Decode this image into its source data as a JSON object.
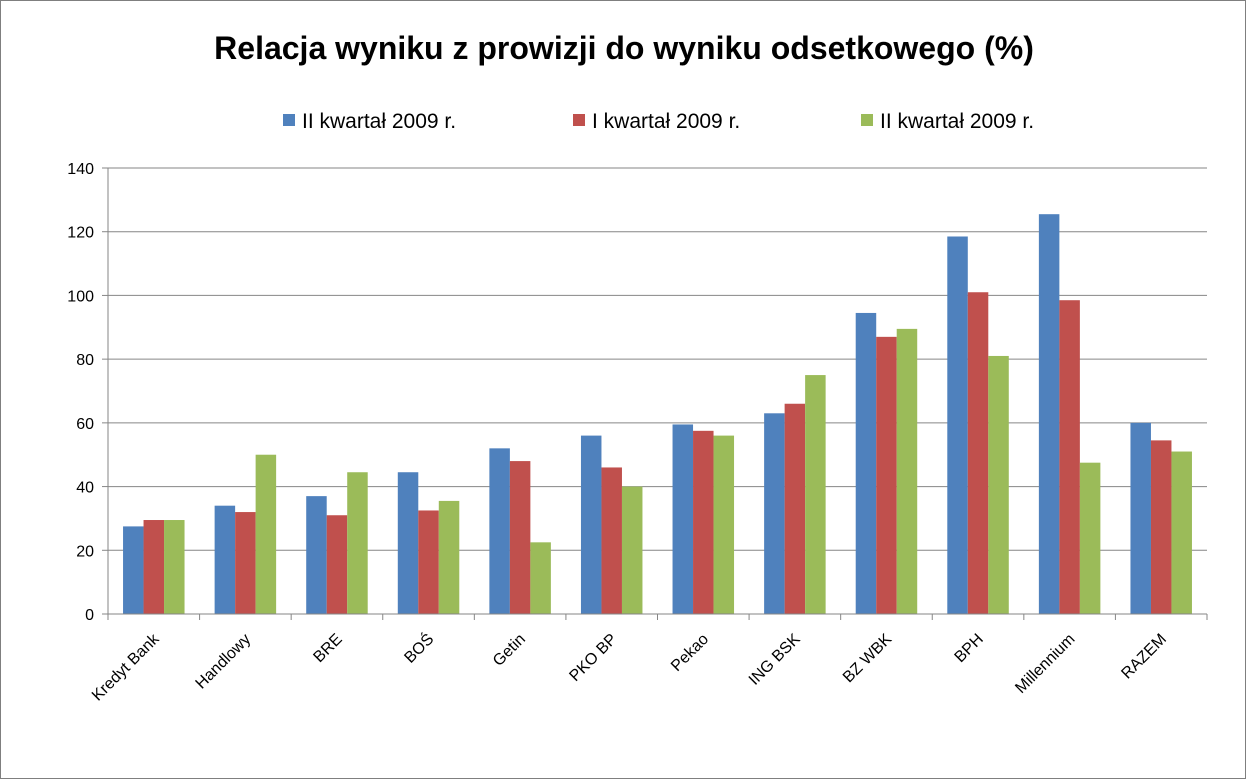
{
  "chart_data": {
    "type": "bar",
    "title": "Relacja wyniku z prowizji do wyniku odsetkowego (%)",
    "xlabel": "",
    "ylabel": "",
    "ylim": [
      0,
      140
    ],
    "yticks": [
      0,
      20,
      40,
      60,
      80,
      100,
      120,
      140
    ],
    "grid": true,
    "legend_position": "top",
    "categories": [
      "Kredyt Bank",
      "Handlowy",
      "BRE",
      "BOŚ",
      "Getin",
      "PKO BP",
      "Pekao",
      "ING BSK",
      "BZ WBK",
      "BPH",
      "Millennium",
      "RAZEM"
    ],
    "series": [
      {
        "name": "II kwartał 2009 r.",
        "color": "#4f81bd",
        "values": [
          27.5,
          34,
          37,
          44.5,
          52,
          56,
          59.5,
          63,
          94.5,
          118.5,
          125.5,
          60
        ]
      },
      {
        "name": "I kwartał 2009 r.",
        "color": "#c0504d",
        "values": [
          29.5,
          32,
          31,
          32.5,
          48,
          46,
          57.5,
          66,
          87,
          101,
          98.5,
          54.5
        ]
      },
      {
        "name": "II kwartał 2009 r.",
        "color": "#9bbb59",
        "values": [
          29.5,
          50,
          44.5,
          35.5,
          22.5,
          40,
          56,
          75,
          89.5,
          81,
          47.5,
          51
        ]
      }
    ]
  }
}
